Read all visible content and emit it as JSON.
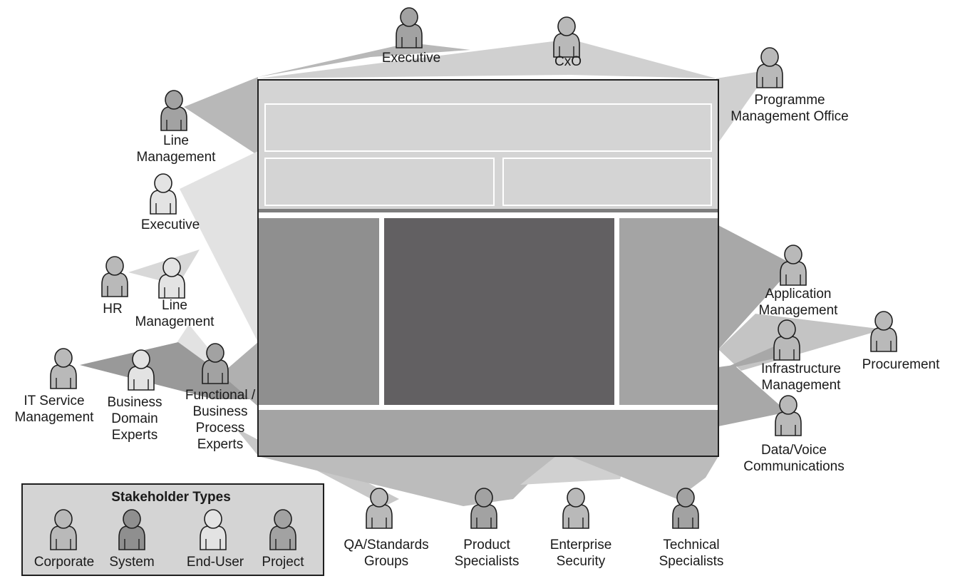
{
  "colors": {
    "corporate": "#b9b9b9",
    "system": "#8f8f8f",
    "end_user": "#e3e3e3",
    "project": "#a2a2a2",
    "outline": "#1f1f1f"
  },
  "stakeholders": [
    {
      "id": "executive-top",
      "type": "project",
      "lines": [
        "Executive"
      ]
    },
    {
      "id": "cxo",
      "type": "corporate",
      "lines": [
        "CxO"
      ]
    },
    {
      "id": "programme-management-office",
      "type": "corporate",
      "lines": [
        "Programme",
        "Management Office"
      ]
    },
    {
      "id": "line-management-top",
      "type": "project",
      "lines": [
        "Line",
        "Management"
      ]
    },
    {
      "id": "executive-left",
      "type": "end_user",
      "lines": [
        "Executive"
      ]
    },
    {
      "id": "hr",
      "type": "corporate",
      "lines": [
        "HR"
      ]
    },
    {
      "id": "line-management-left",
      "type": "end_user",
      "lines": [
        "Line",
        "Management"
      ]
    },
    {
      "id": "it-service-management",
      "type": "corporate",
      "lines": [
        "IT Service",
        "Management"
      ]
    },
    {
      "id": "business-domain-experts",
      "type": "end_user",
      "lines": [
        "Business",
        "Domain",
        "Experts"
      ]
    },
    {
      "id": "functional-business-process-experts",
      "type": "project",
      "lines": [
        "Functional /",
        "Business",
        "Process",
        "Experts"
      ]
    },
    {
      "id": "application-management",
      "type": "corporate",
      "lines": [
        "Application",
        "Management"
      ]
    },
    {
      "id": "procurement",
      "type": "corporate",
      "lines": [
        "Procurement"
      ]
    },
    {
      "id": "infrastructure-management",
      "type": "corporate",
      "lines": [
        "Infrastructure",
        "Management"
      ]
    },
    {
      "id": "data-voice-communications",
      "type": "corporate",
      "lines": [
        "Data/Voice",
        "Communications"
      ]
    },
    {
      "id": "qa-standards-groups",
      "type": "corporate",
      "lines": [
        "QA/Standards",
        "Groups"
      ]
    },
    {
      "id": "product-specialists",
      "type": "project",
      "lines": [
        "Product",
        "Specialists"
      ]
    },
    {
      "id": "enterprise-security",
      "type": "corporate",
      "lines": [
        "Enterprise",
        "Security"
      ]
    },
    {
      "id": "technical-specialists",
      "type": "project",
      "lines": [
        "Technical",
        "Specialists"
      ]
    }
  ],
  "legend": {
    "title": "Stakeholder Types",
    "items": [
      {
        "type": "corporate",
        "label": "Corporate"
      },
      {
        "type": "system",
        "label": "System"
      },
      {
        "type": "end_user",
        "label": "End-User"
      },
      {
        "type": "project",
        "label": "Project"
      }
    ]
  }
}
